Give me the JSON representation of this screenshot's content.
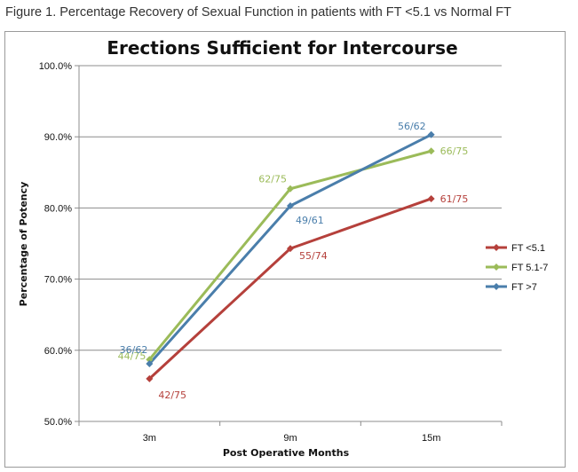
{
  "figure_caption": "Figure 1. Percentage Recovery of Sexual Function in patients with FT <5.1 vs Normal FT",
  "chart_data": {
    "type": "line",
    "title": "Erections Sufficient for Intercourse",
    "xlabel": "Post Operative Months",
    "ylabel": "Percentage of Potency",
    "categories": [
      "3m",
      "9m",
      "15m"
    ],
    "ylim": [
      50,
      100
    ],
    "yticks": [
      "50.0%",
      "60.0%",
      "70.0%",
      "80.0%",
      "90.0%",
      "100.0%"
    ],
    "grid": true,
    "legend_position": "right",
    "series": [
      {
        "name": "FT <5.1",
        "color": "#b5403b",
        "values": [
          56.0,
          74.3,
          81.3
        ],
        "labels": [
          "42/75",
          "55/74",
          "61/75"
        ]
      },
      {
        "name": "FT 5.1-7",
        "color": "#9bbb59",
        "values": [
          58.7,
          82.7,
          88.0
        ],
        "labels": [
          "44/75",
          "62/75",
          "66/75"
        ]
      },
      {
        "name": "FT >7",
        "color": "#4a7eab",
        "values": [
          58.1,
          80.3,
          90.3
        ],
        "labels": [
          "36/62",
          "49/61",
          "56/62"
        ]
      }
    ]
  }
}
